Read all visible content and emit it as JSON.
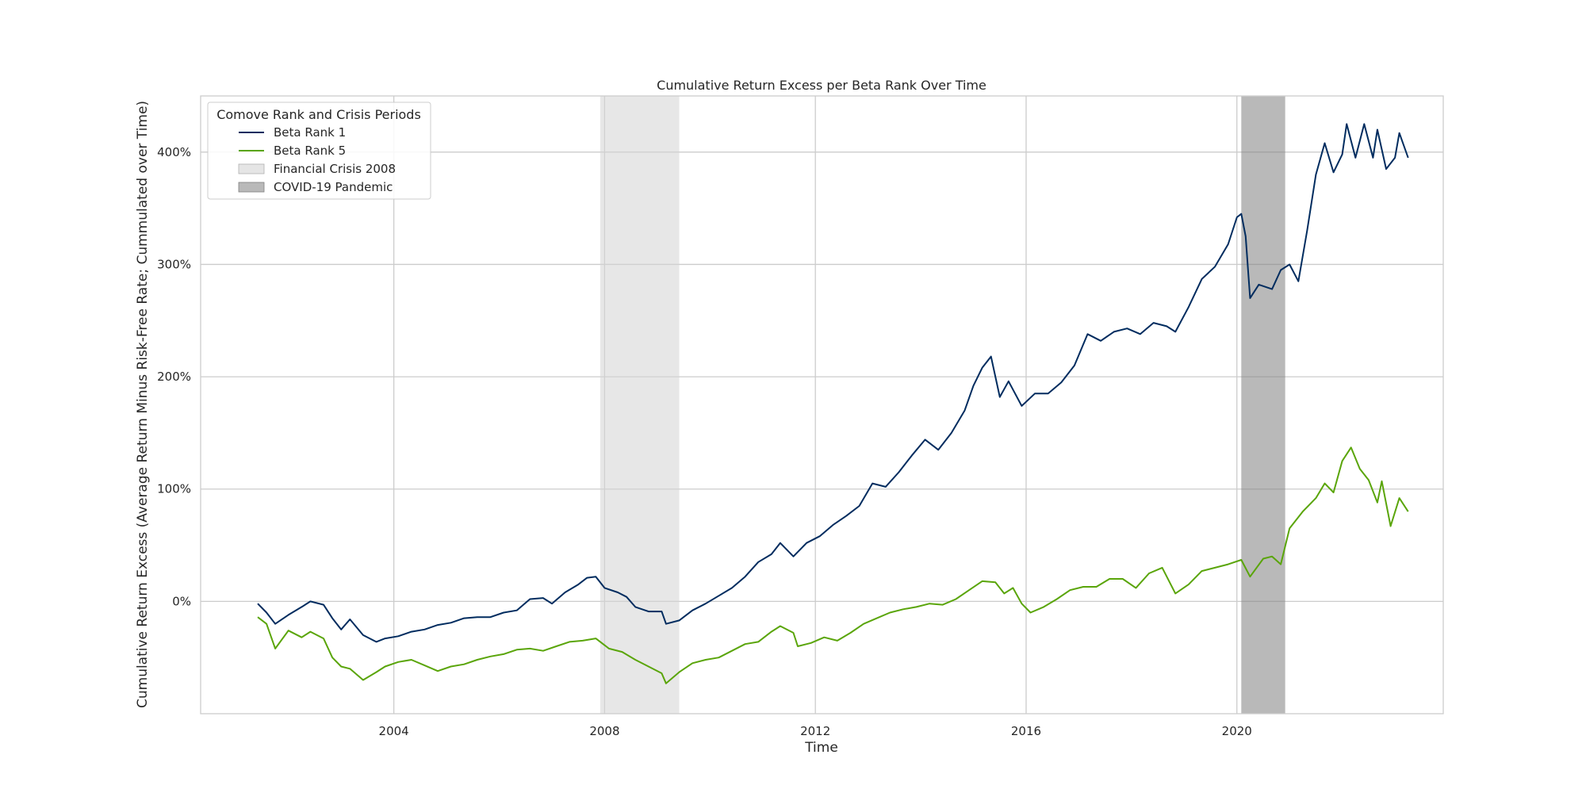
{
  "chart_data": {
    "type": "line",
    "title": "Cumulative Return Excess per Beta Rank Over Time",
    "xlabel": "Time",
    "ylabel": "Cumulative Return Excess (Average Return Minus Risk-Free Rate; Cummulated over Time)",
    "x_ticks": [
      "2004",
      "2008",
      "2012",
      "2016",
      "2020"
    ],
    "y_ticks": [
      "0%",
      "100%",
      "200%",
      "300%",
      "400%"
    ],
    "x_range": [
      "2000-05",
      "2023-12"
    ],
    "y_range": [
      -100,
      450
    ],
    "grid": true,
    "legend": {
      "title": "Comove Rank and Crisis Periods",
      "placement": "top-left",
      "entries": [
        "Beta Rank 1",
        "Beta Rank 5",
        "Financial Crisis 2008",
        "COVID-19 Pandemic"
      ]
    },
    "shaded_periods": [
      {
        "name": "Financial Crisis 2008",
        "start": "2007-12",
        "end": "2009-06",
        "color": "#d3d3d3"
      },
      {
        "name": "COVID-19 Pandemic",
        "start": "2020-02",
        "end": "2020-12",
        "color": "#808080"
      }
    ],
    "series": [
      {
        "name": "Beta Rank 1",
        "color": "#002c5f",
        "points": [
          [
            "2001-06",
            -2
          ],
          [
            "2001-08",
            -10
          ],
          [
            "2001-10",
            -20
          ],
          [
            "2002-01",
            -12
          ],
          [
            "2002-04",
            -5
          ],
          [
            "2002-06",
            0
          ],
          [
            "2002-09",
            -3
          ],
          [
            "2002-11",
            -15
          ],
          [
            "2003-01",
            -25
          ],
          [
            "2003-03",
            -16
          ],
          [
            "2003-06",
            -30
          ],
          [
            "2003-09",
            -36
          ],
          [
            "2003-11",
            -33
          ],
          [
            "2004-02",
            -31
          ],
          [
            "2004-05",
            -27
          ],
          [
            "2004-08",
            -25
          ],
          [
            "2004-11",
            -21
          ],
          [
            "2005-02",
            -19
          ],
          [
            "2005-05",
            -15
          ],
          [
            "2005-08",
            -14
          ],
          [
            "2005-11",
            -14
          ],
          [
            "2006-02",
            -10
          ],
          [
            "2006-05",
            -8
          ],
          [
            "2006-08",
            2
          ],
          [
            "2006-11",
            3
          ],
          [
            "2007-01",
            -2
          ],
          [
            "2007-04",
            8
          ],
          [
            "2007-07",
            15
          ],
          [
            "2007-09",
            21
          ],
          [
            "2007-11",
            22
          ],
          [
            "2008-01",
            12
          ],
          [
            "2008-04",
            8
          ],
          [
            "2008-06",
            4
          ],
          [
            "2008-08",
            -5
          ],
          [
            "2008-11",
            -9
          ],
          [
            "2009-02",
            -9
          ],
          [
            "2009-03",
            -20
          ],
          [
            "2009-06",
            -17
          ],
          [
            "2009-09",
            -8
          ],
          [
            "2009-12",
            -2
          ],
          [
            "2010-03",
            5
          ],
          [
            "2010-06",
            12
          ],
          [
            "2010-09",
            22
          ],
          [
            "2010-12",
            35
          ],
          [
            "2011-03",
            42
          ],
          [
            "2011-05",
            52
          ],
          [
            "2011-08",
            40
          ],
          [
            "2011-11",
            52
          ],
          [
            "2012-02",
            58
          ],
          [
            "2012-05",
            68
          ],
          [
            "2012-08",
            76
          ],
          [
            "2012-11",
            85
          ],
          [
            "2013-02",
            105
          ],
          [
            "2013-05",
            102
          ],
          [
            "2013-08",
            115
          ],
          [
            "2013-11",
            130
          ],
          [
            "2014-02",
            144
          ],
          [
            "2014-05",
            135
          ],
          [
            "2014-08",
            150
          ],
          [
            "2014-11",
            170
          ],
          [
            "2015-01",
            192
          ],
          [
            "2015-03",
            208
          ],
          [
            "2015-05",
            218
          ],
          [
            "2015-07",
            182
          ],
          [
            "2015-09",
            196
          ],
          [
            "2015-12",
            174
          ],
          [
            "2016-03",
            185
          ],
          [
            "2016-06",
            185
          ],
          [
            "2016-09",
            195
          ],
          [
            "2016-12",
            210
          ],
          [
            "2017-03",
            238
          ],
          [
            "2017-06",
            232
          ],
          [
            "2017-09",
            240
          ],
          [
            "2017-12",
            243
          ],
          [
            "2018-03",
            238
          ],
          [
            "2018-06",
            248
          ],
          [
            "2018-09",
            245
          ],
          [
            "2018-11",
            240
          ],
          [
            "2019-02",
            262
          ],
          [
            "2019-05",
            287
          ],
          [
            "2019-08",
            298
          ],
          [
            "2019-11",
            318
          ],
          [
            "2020-01",
            342
          ],
          [
            "2020-02",
            345
          ],
          [
            "2020-03",
            325
          ],
          [
            "2020-04",
            270
          ],
          [
            "2020-06",
            282
          ],
          [
            "2020-09",
            278
          ],
          [
            "2020-11",
            295
          ],
          [
            "2021-01",
            300
          ],
          [
            "2021-03",
            285
          ],
          [
            "2021-05",
            330
          ],
          [
            "2021-07",
            380
          ],
          [
            "2021-09",
            408
          ],
          [
            "2021-11",
            382
          ],
          [
            "2022-01",
            398
          ],
          [
            "2022-02",
            425
          ],
          [
            "2022-04",
            395
          ],
          [
            "2022-06",
            425
          ],
          [
            "2022-08",
            395
          ],
          [
            "2022-09",
            420
          ],
          [
            "2022-11",
            385
          ],
          [
            "2023-01",
            395
          ],
          [
            "2023-02",
            417
          ],
          [
            "2023-04",
            395
          ]
        ]
      },
      {
        "name": "Beta Rank 5",
        "color": "#5aa50a",
        "points": [
          [
            "2001-06",
            -14
          ],
          [
            "2001-08",
            -20
          ],
          [
            "2001-10",
            -42
          ],
          [
            "2002-01",
            -26
          ],
          [
            "2002-04",
            -32
          ],
          [
            "2002-06",
            -27
          ],
          [
            "2002-09",
            -33
          ],
          [
            "2002-11",
            -50
          ],
          [
            "2003-01",
            -58
          ],
          [
            "2003-03",
            -60
          ],
          [
            "2003-06",
            -70
          ],
          [
            "2003-09",
            -63
          ],
          [
            "2003-11",
            -58
          ],
          [
            "2004-02",
            -54
          ],
          [
            "2004-05",
            -52
          ],
          [
            "2004-08",
            -57
          ],
          [
            "2004-11",
            -62
          ],
          [
            "2005-02",
            -58
          ],
          [
            "2005-05",
            -56
          ],
          [
            "2005-08",
            -52
          ],
          [
            "2005-11",
            -49
          ],
          [
            "2006-02",
            -47
          ],
          [
            "2006-05",
            -43
          ],
          [
            "2006-08",
            -42
          ],
          [
            "2006-11",
            -44
          ],
          [
            "2007-02",
            -40
          ],
          [
            "2007-05",
            -36
          ],
          [
            "2007-08",
            -35
          ],
          [
            "2007-11",
            -33
          ],
          [
            "2008-02",
            -42
          ],
          [
            "2008-05",
            -45
          ],
          [
            "2008-08",
            -52
          ],
          [
            "2008-11",
            -58
          ],
          [
            "2009-02",
            -64
          ],
          [
            "2009-03",
            -73
          ],
          [
            "2009-06",
            -63
          ],
          [
            "2009-09",
            -55
          ],
          [
            "2009-12",
            -52
          ],
          [
            "2010-03",
            -50
          ],
          [
            "2010-06",
            -44
          ],
          [
            "2010-09",
            -38
          ],
          [
            "2010-12",
            -36
          ],
          [
            "2011-03",
            -27
          ],
          [
            "2011-05",
            -22
          ],
          [
            "2011-08",
            -28
          ],
          [
            "2011-09",
            -40
          ],
          [
            "2011-12",
            -37
          ],
          [
            "2012-03",
            -32
          ],
          [
            "2012-06",
            -35
          ],
          [
            "2012-09",
            -28
          ],
          [
            "2012-12",
            -20
          ],
          [
            "2013-03",
            -15
          ],
          [
            "2013-06",
            -10
          ],
          [
            "2013-09",
            -7
          ],
          [
            "2013-12",
            -5
          ],
          [
            "2014-03",
            -2
          ],
          [
            "2014-06",
            -3
          ],
          [
            "2014-09",
            2
          ],
          [
            "2014-12",
            10
          ],
          [
            "2015-03",
            18
          ],
          [
            "2015-06",
            17
          ],
          [
            "2015-08",
            7
          ],
          [
            "2015-10",
            12
          ],
          [
            "2015-12",
            -2
          ],
          [
            "2016-02",
            -10
          ],
          [
            "2016-05",
            -5
          ],
          [
            "2016-08",
            2
          ],
          [
            "2016-11",
            10
          ],
          [
            "2017-02",
            13
          ],
          [
            "2017-05",
            13
          ],
          [
            "2017-08",
            20
          ],
          [
            "2017-11",
            20
          ],
          [
            "2018-02",
            12
          ],
          [
            "2018-05",
            25
          ],
          [
            "2018-08",
            30
          ],
          [
            "2018-11",
            7
          ],
          [
            "2019-02",
            15
          ],
          [
            "2019-05",
            27
          ],
          [
            "2019-08",
            30
          ],
          [
            "2019-11",
            33
          ],
          [
            "2020-02",
            37
          ],
          [
            "2020-04",
            22
          ],
          [
            "2020-07",
            38
          ],
          [
            "2020-09",
            40
          ],
          [
            "2020-11",
            33
          ],
          [
            "2021-01",
            65
          ],
          [
            "2021-04",
            80
          ],
          [
            "2021-07",
            92
          ],
          [
            "2021-09",
            105
          ],
          [
            "2021-11",
            97
          ],
          [
            "2022-01",
            125
          ],
          [
            "2022-03",
            137
          ],
          [
            "2022-05",
            118
          ],
          [
            "2022-07",
            108
          ],
          [
            "2022-09",
            88
          ],
          [
            "2022-10",
            107
          ],
          [
            "2022-12",
            67
          ],
          [
            "2023-02",
            92
          ],
          [
            "2023-04",
            80
          ]
        ]
      }
    ]
  }
}
